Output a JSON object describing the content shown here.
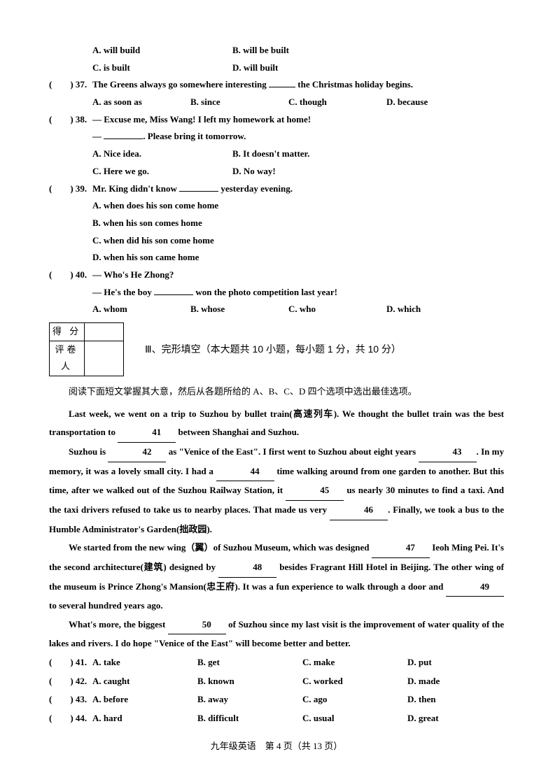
{
  "q36opts": {
    "a": "A. will build",
    "b": "B. will be built",
    "c": "C. is built",
    "d": "D. will built"
  },
  "q37": {
    "num": "(　　) 37.",
    "stem1": "The Greens always go somewhere interesting ",
    "stem2": " the Christmas holiday begins.",
    "a": "A. as soon as",
    "b": "B. since",
    "c": "C. though",
    "d": "D. because"
  },
  "q38": {
    "num": "(　　) 38.",
    "stem1": "— Excuse me, Miss Wang! I left my homework at home!",
    "stem2a": "— ",
    "stem2b": ". Please bring it tomorrow.",
    "a": "A. Nice idea.",
    "b": "B. It doesn't matter.",
    "c": "C. Here we go.",
    "d": "D. No way!"
  },
  "q39": {
    "num": "(　　) 39.",
    "stem1": "Mr. King didn't know ",
    "stem2": " yesterday evening.",
    "a": "A. when does his son come home",
    "b": "B. when his son comes home",
    "c": "C. when did his son come home",
    "d": "D. when his son came home"
  },
  "q40": {
    "num": "(　　) 40.",
    "stem1": "— Who's He Zhong?",
    "stem2a": "— He's the boy ",
    "stem2b": " won the photo competition last year!",
    "a": "A. whom",
    "b": "B. whose",
    "c": "C. who",
    "d": "D. which"
  },
  "scorebox": {
    "score": "得 分",
    "grader": "评卷人"
  },
  "section3": "Ⅲ、完形填空（本大题共 10 小题，每小题 1 分，共 10 分）",
  "instruction": "阅读下面短文掌握其大意，然后从各题所给的 A、B、C、D 四个选项中选出最佳选项。",
  "passage": {
    "p1a": "Last week, we went on a trip to Suzhou by bullet train(高速列车). We thought the bullet train was the best transportation to ",
    "b41": "　41　",
    "p1b": " between Shanghai and Suzhou.",
    "p2a": "Suzhou is ",
    "b42": "　42　",
    "p2b": " as \"Venice of the East\". I first went to Suzhou about eight years ",
    "b43": "　43　",
    "p2c": ". In my memory, it was a lovely small city. I had a ",
    "b44": "　44　",
    "p2d": " time walking around from one garden to another. But this time,  after we walked out of the Suzhou Railway Station, it ",
    "b45": "　45　",
    "p2e": " us nearly 30 minutes to find a taxi. And the taxi drivers refused to take us to nearby places. That made us very ",
    "b46": "　46　",
    "p2f": ". Finally, we took a bus to the Humble Administrator's Garden(拙政园).",
    "p3a": "We started from the new wing（翼）of Suzhou Museum, which was designed ",
    "b47": "　47　",
    "p3b": " Ieoh Ming Pei. It's the second architecture(建筑) designed by ",
    "b48": "　48　",
    "p3c": " besides Fragrant Hill Hotel in Beijing. The other wing of the museum is Prince Zhong's Mansion(忠王府). It was a fun experience to walk through a door and ",
    "b49": "　49　",
    "p3d": " to several hundred years ago.",
    "p4a": "What's more, the biggest ",
    "b50": "　50　",
    "p4b": " of Suzhou since my last visit is the improvement of water quality of the lakes and rivers. I do hope \"Venice of the East\" will become better and better."
  },
  "cloze": [
    {
      "num": "(　　) 41.",
      "a": "A. take",
      "b": "B. get",
      "c": "C. make",
      "d": "D. put"
    },
    {
      "num": "(　　) 42.",
      "a": "A. caught",
      "b": "B. known",
      "c": "C. worked",
      "d": "D. made"
    },
    {
      "num": "(　　) 43.",
      "a": "A. before",
      "b": "B. away",
      "c": "C. ago",
      "d": "D. then"
    },
    {
      "num": "(　　) 44.",
      "a": "A. hard",
      "b": "B. difficult",
      "c": "C. usual",
      "d": "D. great"
    }
  ],
  "footer": "九年级英语　第 4 页（共 13 页）"
}
